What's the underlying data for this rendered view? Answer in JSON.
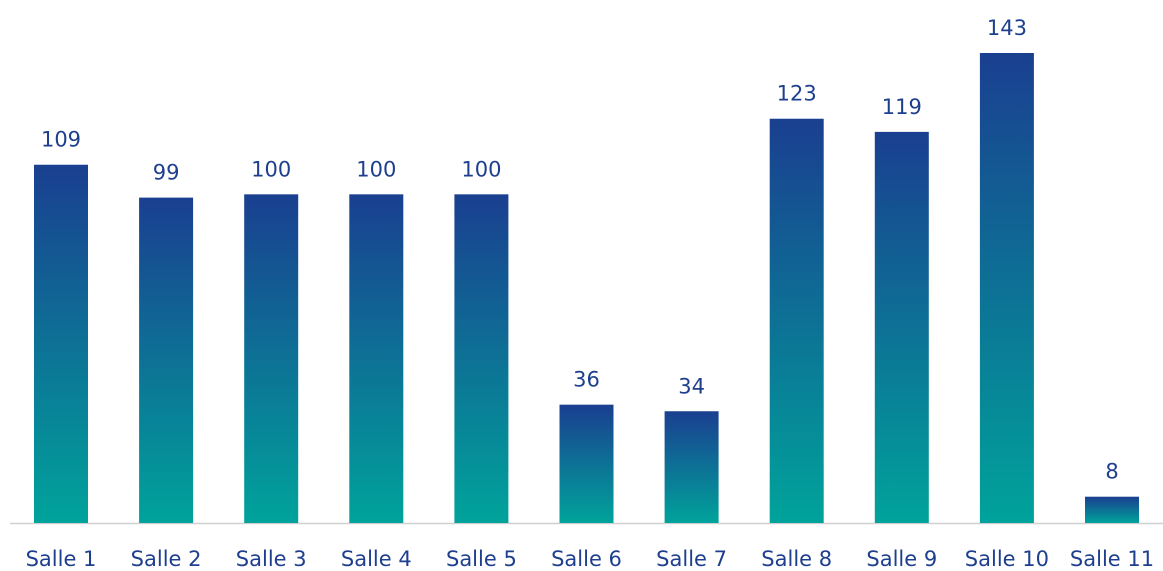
{
  "chart_data": {
    "type": "bar",
    "categories": [
      "Salle 1",
      "Salle 2",
      "Salle 3",
      "Salle 4",
      "Salle 5",
      "Salle 6",
      "Salle 7",
      "Salle 8",
      "Salle 9",
      "Salle 10",
      "Salle 11"
    ],
    "values": [
      109,
      99,
      100,
      100,
      100,
      36,
      34,
      123,
      119,
      143,
      8
    ],
    "color": [
      "#1a3f90",
      "#00a39b"
    ]
  }
}
